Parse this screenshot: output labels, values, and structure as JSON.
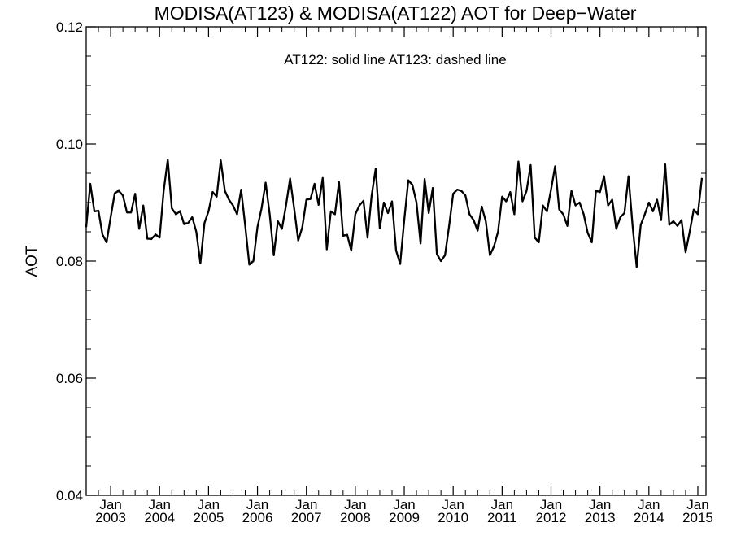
{
  "chart_data": {
    "type": "line",
    "title": "MODISA(AT123) & MODISA(AT122)  AOT for Deep−Water",
    "annotation": "AT122: solid line   AT123: dashed line",
    "ylabel": "AOT",
    "xlabel": "",
    "ylim": [
      0.04,
      0.12
    ],
    "xlim": [
      "2002-07",
      "2015-03"
    ],
    "y_ticks": [
      {
        "value": 0.04,
        "label": "0.04"
      },
      {
        "value": 0.06,
        "label": "0.06"
      },
      {
        "value": 0.08,
        "label": "0.08"
      },
      {
        "value": 0.1,
        "label": "0.10"
      },
      {
        "value": 0.12,
        "label": "0.12"
      }
    ],
    "y_minor_step": 0.005,
    "x_ticks": [
      {
        "date": "2003-01",
        "label": "Jan",
        "year": "2003"
      },
      {
        "date": "2004-01",
        "label": "Jan",
        "year": "2004"
      },
      {
        "date": "2005-01",
        "label": "Jan",
        "year": "2005"
      },
      {
        "date": "2006-01",
        "label": "Jan",
        "year": "2006"
      },
      {
        "date": "2007-01",
        "label": "Jan",
        "year": "2007"
      },
      {
        "date": "2008-01",
        "label": "Jan",
        "year": "2008"
      },
      {
        "date": "2009-01",
        "label": "Jan",
        "year": "2009"
      },
      {
        "date": "2010-01",
        "label": "Jan",
        "year": "2010"
      },
      {
        "date": "2011-01",
        "label": "Jan",
        "year": "2011"
      },
      {
        "date": "2012-01",
        "label": "Jan",
        "year": "2012"
      },
      {
        "date": "2013-01",
        "label": "Jan",
        "year": "2013"
      },
      {
        "date": "2014-01",
        "label": "Jan",
        "year": "2014"
      },
      {
        "date": "2015-01",
        "label": "Jan",
        "year": "2015"
      }
    ],
    "x_minor_months": [
      4,
      7,
      10
    ],
    "grid": false,
    "series": [
      {
        "name": "AT122",
        "style": "solid",
        "color": "#000000",
        "x_start": "2002-07",
        "x_step": "1 month",
        "values": [
          0.0858,
          0.0932,
          0.0885,
          0.0886,
          0.0845,
          0.0832,
          0.0875,
          0.0916,
          0.092,
          0.0912,
          0.0883,
          0.0883,
          0.0915,
          0.0855,
          0.0895,
          0.0838,
          0.0838,
          0.0845,
          0.084,
          0.092,
          0.0973,
          0.089,
          0.088,
          0.0885,
          0.0863,
          0.0865,
          0.0875,
          0.085,
          0.0796,
          0.0865,
          0.0885,
          0.0918,
          0.091,
          0.0972,
          0.092,
          0.0905,
          0.0895,
          0.088,
          0.0922,
          0.086,
          0.0794,
          0.08,
          0.0858,
          0.089,
          0.0934,
          0.088,
          0.081,
          0.0868,
          0.0855,
          0.0895,
          0.0941,
          0.089,
          0.0835,
          0.0858,
          0.0905,
          0.0906,
          0.0932,
          0.0896,
          0.0942,
          0.082,
          0.0885,
          0.088,
          0.0935,
          0.0843,
          0.0845,
          0.0818,
          0.088,
          0.0895,
          0.0903,
          0.084,
          0.0912,
          0.0958,
          0.0856,
          0.09,
          0.0882,
          0.0902,
          0.0818,
          0.0795,
          0.087,
          0.0938,
          0.093,
          0.09,
          0.083,
          0.094,
          0.0882,
          0.0925,
          0.0812,
          0.08,
          0.081,
          0.086,
          0.0915,
          0.0922,
          0.092,
          0.0912,
          0.088,
          0.087,
          0.0852,
          0.0893,
          0.0868,
          0.081,
          0.0825,
          0.085,
          0.091,
          0.0902,
          0.0918,
          0.088,
          0.097,
          0.0902,
          0.092,
          0.0964,
          0.084,
          0.0832,
          0.0895,
          0.0885,
          0.0922,
          0.0962,
          0.0888,
          0.088,
          0.086,
          0.092,
          0.0895,
          0.09,
          0.088,
          0.0848,
          0.0832,
          0.092,
          0.0918,
          0.0945,
          0.0895,
          0.0905,
          0.0855,
          0.0875,
          0.0882,
          0.0945,
          0.086,
          0.079,
          0.0862,
          0.088,
          0.09,
          0.0885,
          0.0905,
          0.087,
          0.0965,
          0.0862,
          0.0868,
          0.086,
          0.087,
          0.0815,
          0.085,
          0.0888,
          0.088,
          0.0942
        ]
      },
      {
        "name": "AT123",
        "style": "dashed",
        "color": "#000000",
        "x_start": "2002-07",
        "x_step": "1 month",
        "values": [
          0.0858,
          0.093,
          0.0886,
          0.0886,
          0.0846,
          0.0833,
          0.0876,
          0.0915,
          0.0922,
          0.0911,
          0.0884,
          0.0882,
          0.0914,
          0.0856,
          0.0894,
          0.0839,
          0.0837,
          0.0846,
          0.0841,
          0.0919,
          0.0971,
          0.0891,
          0.0879,
          0.0886,
          0.0864,
          0.0866,
          0.0874,
          0.0851,
          0.0797,
          0.0864,
          0.0886,
          0.0917,
          0.0911,
          0.097,
          0.0921,
          0.0904,
          0.0896,
          0.0879,
          0.0921,
          0.0861,
          0.0795,
          0.0801,
          0.0857,
          0.0891,
          0.0933,
          0.0881,
          0.0811,
          0.0867,
          0.0856,
          0.0894,
          0.094,
          0.0891,
          0.0836,
          0.0857,
          0.0904,
          0.0907,
          0.0931,
          0.0897,
          0.094,
          0.0821,
          0.0884,
          0.0881,
          0.0933,
          0.0844,
          0.0846,
          0.0819,
          0.0879,
          0.0896,
          0.0902,
          0.0841,
          0.0911,
          0.0956,
          0.0857,
          0.0899,
          0.0883,
          0.0901,
          0.0819,
          0.0796,
          0.0869,
          0.0936,
          0.0931,
          0.0899,
          0.0831,
          0.0938,
          0.0883,
          0.0924,
          0.0813,
          0.0801,
          0.0811,
          0.0859,
          0.0914,
          0.0923,
          0.0919,
          0.0913,
          0.0879,
          0.0871,
          0.0853,
          0.0892,
          0.0869,
          0.0811,
          0.0826,
          0.0851,
          0.0909,
          0.0903,
          0.0917,
          0.0881,
          0.0968,
          0.0903,
          0.0919,
          0.0962,
          0.0841,
          0.0833,
          0.0894,
          0.0886,
          0.0921,
          0.096,
          0.0889,
          0.0879,
          0.0861,
          0.0919,
          0.0896,
          0.0899,
          0.0881,
          0.0849,
          0.0833,
          0.0919,
          0.0917,
          0.0943,
          0.0896,
          0.0904,
          0.0856,
          0.0874,
          0.0883,
          0.0943,
          0.0861,
          0.0791,
          0.0861,
          0.0881,
          0.0899,
          0.0886,
          0.0904,
          0.0871,
          0.0963,
          0.0863,
          0.0867,
          0.0861,
          0.0869,
          0.0816,
          0.0849,
          0.0887,
          0.0881,
          0.094
        ]
      }
    ]
  }
}
